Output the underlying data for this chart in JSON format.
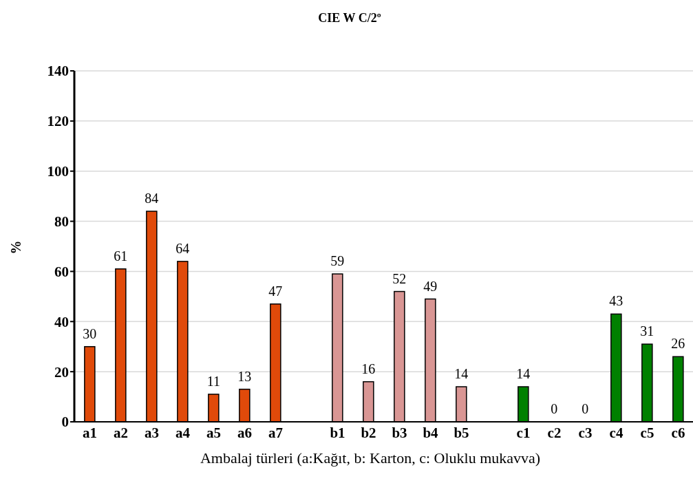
{
  "chart_data": {
    "type": "bar",
    "title": "CIE W C/2º",
    "xlabel": "Ambalaj türleri (a:Kağıt, b: Karton, c: Oluklu mukavva)",
    "ylabel": "%",
    "categories": [
      "a1",
      "a2",
      "a3",
      "a4",
      "a5",
      "a6",
      "a7",
      null,
      "b1",
      "b2",
      "b3",
      "b4",
      "b5",
      null,
      "c1",
      "c2",
      "c3",
      "c4",
      "c5",
      "c6"
    ],
    "values": [
      30,
      61,
      84,
      64,
      11,
      13,
      47,
      null,
      59,
      16,
      52,
      49,
      14,
      null,
      14,
      0,
      0,
      43,
      31,
      26
    ],
    "colors": [
      "#e04a0a",
      "#e04a0a",
      "#e04a0a",
      "#e04a0a",
      "#e04a0a",
      "#e04a0a",
      "#e04a0a",
      "#ffffff",
      "#d99694",
      "#d99694",
      "#d99694",
      "#d99694",
      "#d99694",
      "#ffffff",
      "#008000",
      "#008000",
      "#008000",
      "#008000",
      "#008000",
      "#008000"
    ],
    "ylim": [
      0,
      140
    ],
    "yticks": [
      0,
      20,
      40,
      60,
      80,
      100,
      120,
      140
    ],
    "grid": "y",
    "data_labels": true,
    "legend": false
  }
}
